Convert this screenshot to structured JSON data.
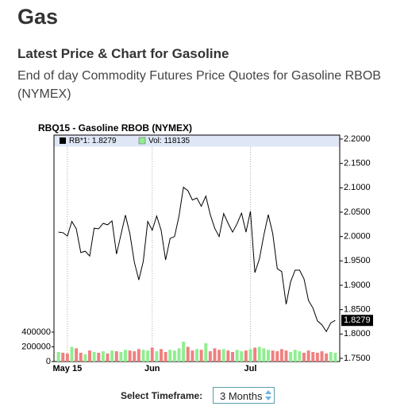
{
  "header": {
    "title": "Gas",
    "heading": "Latest Price & Chart for Gasoline",
    "description": "End of day Commodity Futures Price Quotes for Gasoline RBOB (NYMEX)"
  },
  "chart_data": {
    "type": "line",
    "title": "RBQ15 - Gasoline RBOB (NYMEX)",
    "series": [
      {
        "name": "RB*1: 1.8279",
        "color": "#000000",
        "values": [
          2.009,
          2.008,
          2.001,
          2.031,
          2.016,
          1.967,
          1.97,
          1.96,
          2.017,
          2.016,
          2.027,
          2.024,
          2.032,
          1.964,
          2.004,
          2.044,
          2.006,
          1.947,
          1.911,
          1.949,
          2.031,
          2.013,
          2.042,
          2.013,
          1.952,
          1.996,
          2.0,
          2.042,
          2.101,
          2.094,
          2.075,
          2.079,
          2.062,
          2.083,
          2.045,
          2.017,
          2.0,
          2.047,
          2.027,
          2.009,
          2.026,
          2.048,
          2.009,
          2.052,
          1.926,
          1.954,
          2.003,
          2.045,
          2.006,
          1.934,
          1.928,
          1.861,
          1.907,
          1.931,
          1.931,
          1.913,
          1.869,
          1.853,
          1.827,
          1.819,
          1.805,
          1.823,
          1.8279
        ]
      },
      {
        "name": "Vol: 118135",
        "color": "#90ee90",
        "down_color": "#f08080",
        "axis": "y2",
        "values": [
          130000,
          120000,
          110000,
          200000,
          180000,
          120000,
          100000,
          150000,
          130000,
          120000,
          140000,
          110000,
          150000,
          140000,
          130000,
          160000,
          150000,
          140000,
          170000,
          160000,
          150000,
          190000,
          140000,
          170000,
          130000,
          160000,
          150000,
          180000,
          270000,
          200000,
          150000,
          170000,
          160000,
          250000,
          140000,
          180000,
          160000,
          170000,
          150000,
          130000,
          160000,
          140000,
          150000,
          170000,
          190000,
          200000,
          180000,
          160000,
          150000,
          140000,
          170000,
          150000,
          130000,
          160000,
          140000,
          120000,
          150000,
          130000,
          120000,
          140000,
          110000,
          130000,
          118135
        ]
      }
    ],
    "xlim": [
      -1,
      63
    ],
    "xticks": [
      {
        "value": 2,
        "label": "May 15"
      },
      {
        "value": 21,
        "label": "Jun"
      },
      {
        "value": 43,
        "label": "Jul"
      }
    ],
    "ylim": [
      1.75,
      2.2
    ],
    "yticks": [
      {
        "value": 1.75,
        "label": "1.7500"
      },
      {
        "value": 1.8,
        "label": "1.8000"
      },
      {
        "value": 1.85,
        "label": "1.8500"
      },
      {
        "value": 1.9,
        "label": "1.9000"
      },
      {
        "value": 1.95,
        "label": "1.9500"
      },
      {
        "value": 2.0,
        "label": "2.0000"
      },
      {
        "value": 2.05,
        "label": "2.0500"
      },
      {
        "value": 2.1,
        "label": "2.1000"
      },
      {
        "value": 2.15,
        "label": "2.1500"
      },
      {
        "value": 2.2,
        "label": "2.2000"
      }
    ],
    "y2lim": [
      0,
      400000
    ],
    "y2ticks": [
      0,
      200000,
      400000
    ],
    "grid": true
  },
  "controls": {
    "timeframe_label": "Select Timeframe:",
    "timeframe_value": "3 Months"
  }
}
